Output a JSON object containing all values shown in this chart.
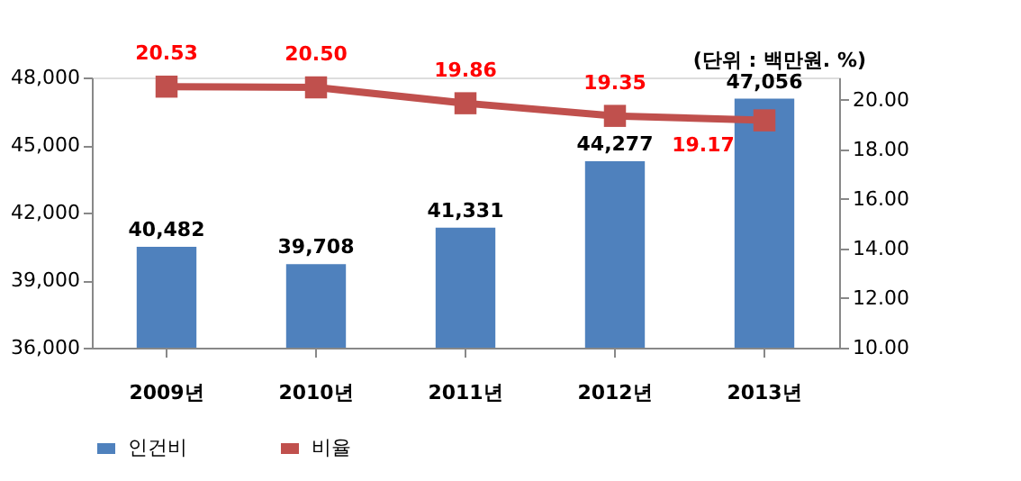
{
  "chart_data": {
    "type": "bar",
    "categories": [
      "2009년",
      "2010년",
      "2011년",
      "2012년",
      "2013년"
    ],
    "series": [
      {
        "name": "인건비",
        "color": "#4f81bd",
        "values": [
          40482,
          39708,
          41331,
          44277,
          47056
        ]
      },
      {
        "name": "비율",
        "type": "line",
        "axis": "y2",
        "color": "#c0504d",
        "marker": "square",
        "values": [
          20.53,
          20.5,
          19.86,
          19.35,
          19.17
        ]
      }
    ],
    "ylim": [
      36000,
      48000
    ],
    "yticks": [
      {
        "value": 36000,
        "label": "36,000"
      },
      {
        "value": 39000,
        "label": "39,000"
      },
      {
        "value": 42000,
        "label": "42,000"
      },
      {
        "value": 45000,
        "label": "45,000"
      },
      {
        "value": 48000,
        "label": "48,000"
      }
    ],
    "y2lim": [
      10,
      20.9
    ],
    "y2ticks": [
      {
        "value": 10,
        "label": "10.00"
      },
      {
        "value": 12,
        "label": "12.00"
      },
      {
        "value": 14,
        "label": "14.00"
      },
      {
        "value": 16,
        "label": "16.00"
      },
      {
        "value": 18,
        "label": "18.00"
      },
      {
        "value": 20,
        "label": "20.00"
      }
    ],
    "value_labels": [
      [
        "40,482",
        "39,708",
        "41,331",
        "44,277",
        "47,056"
      ],
      [
        "20.53",
        "20.50",
        "19.86",
        "19.35",
        "19.17"
      ]
    ],
    "annotations": [
      "(단위 : 백만원. %)"
    ],
    "legend": "bottom",
    "grid": false
  }
}
